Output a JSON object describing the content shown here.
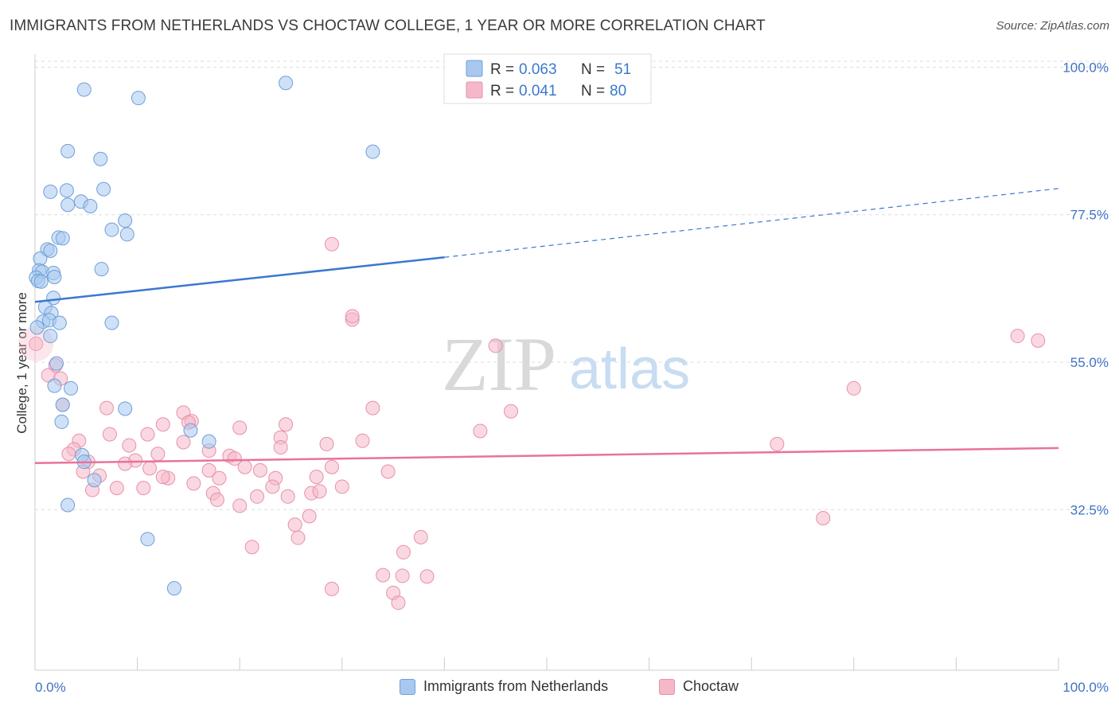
{
  "title": "IMMIGRANTS FROM NETHERLANDS VS CHOCTAW COLLEGE, 1 YEAR OR MORE CORRELATION CHART",
  "source": "Source: ZipAtlas.com",
  "watermark": {
    "zip": "ZIP",
    "atlas": "atlas"
  },
  "colors": {
    "blue_fill": "#a8c8f0",
    "blue_stroke": "#6f9fd8",
    "blue_line": "#3a78d0",
    "pink_fill": "#f5b8c8",
    "pink_stroke": "#e890aa",
    "pink_line": "#e8739a",
    "tick_label": "#3f72c4",
    "grid": "#dddddd"
  },
  "legend_top": {
    "rows": [
      {
        "r_label": "R = ",
        "r_value": "0.063",
        "n_label": "N = ",
        "n_value": "51",
        "color": "blue"
      },
      {
        "r_label": "R = ",
        "r_value": "0.041",
        "n_label": "N = ",
        "n_value": "80",
        "color": "pink"
      }
    ]
  },
  "legend_bottom": [
    {
      "label": "Immigrants from Netherlands",
      "color": "blue"
    },
    {
      "label": "Choctaw",
      "color": "pink"
    }
  ],
  "chart_data": {
    "type": "scatter",
    "title": "IMMIGRANTS FROM NETHERLANDS VS CHOCTAW COLLEGE, 1 YEAR OR MORE CORRELATION CHART",
    "xlabel": "",
    "ylabel": "College, 1 year or more",
    "xlim": [
      0,
      100
    ],
    "ylim": [
      8,
      102
    ],
    "x_tick_labels": [
      {
        "value": 0,
        "label": "0.0%"
      },
      {
        "value": 100,
        "label": "100.0%"
      }
    ],
    "y_tick_labels": [
      {
        "value": 100,
        "label": "100.0%"
      },
      {
        "value": 77.5,
        "label": "77.5%"
      },
      {
        "value": 55,
        "label": "55.0%"
      },
      {
        "value": 32.5,
        "label": "32.5%"
      }
    ],
    "grid": true,
    "legend_position": "top-center",
    "series": [
      {
        "name": "Immigrants from Netherlands",
        "color": "blue",
        "r": 0.063,
        "n": 51,
        "trend": {
          "x": [
            0,
            40
          ],
          "y": [
            64.2,
            71.0
          ],
          "dashed_x": [
            40,
            100
          ],
          "dashed_y": [
            71.0,
            81.5
          ]
        },
        "points": [
          [
            4.8,
            96.6
          ],
          [
            10.1,
            95.3
          ],
          [
            24.5,
            97.6
          ],
          [
            3.2,
            87.2
          ],
          [
            6.4,
            86.0
          ],
          [
            33.0,
            87.1
          ],
          [
            1.5,
            81.0
          ],
          [
            3.1,
            81.2
          ],
          [
            4.5,
            79.5
          ],
          [
            6.7,
            81.4
          ],
          [
            3.2,
            79.0
          ],
          [
            5.4,
            78.8
          ],
          [
            8.8,
            76.6
          ],
          [
            7.5,
            75.2
          ],
          [
            9.0,
            74.5
          ],
          [
            2.3,
            74.0
          ],
          [
            2.7,
            73.9
          ],
          [
            1.2,
            72.2
          ],
          [
            1.5,
            72.0
          ],
          [
            0.5,
            70.8
          ],
          [
            0.4,
            69.0
          ],
          [
            0.7,
            68.8
          ],
          [
            1.8,
            68.6
          ],
          [
            6.5,
            69.2
          ],
          [
            0.1,
            67.9
          ],
          [
            0.3,
            67.4
          ],
          [
            0.6,
            67.3
          ],
          [
            1.9,
            68.0
          ],
          [
            1.8,
            64.8
          ],
          [
            1.0,
            63.4
          ],
          [
            1.6,
            62.5
          ],
          [
            0.8,
            61.2
          ],
          [
            1.4,
            61.4
          ],
          [
            2.4,
            61.0
          ],
          [
            7.5,
            61.0
          ],
          [
            1.5,
            59.0
          ],
          [
            2.1,
            54.8
          ],
          [
            1.9,
            51.4
          ],
          [
            3.5,
            51.0
          ],
          [
            2.7,
            48.5
          ],
          [
            8.8,
            47.9
          ],
          [
            2.6,
            45.9
          ],
          [
            15.2,
            44.6
          ],
          [
            17.0,
            42.9
          ],
          [
            4.6,
            40.8
          ],
          [
            4.8,
            39.8
          ],
          [
            5.8,
            37.0
          ],
          [
            3.2,
            33.2
          ],
          [
            11.0,
            28.0
          ],
          [
            13.6,
            20.5
          ],
          [
            0.2,
            60.3
          ]
        ]
      },
      {
        "name": "Choctaw",
        "color": "pink",
        "r": 0.041,
        "n": 80,
        "trend": {
          "x": [
            0,
            100
          ],
          "y": [
            39.6,
            41.9
          ]
        },
        "points": [
          [
            0.1,
            57.8
          ],
          [
            29.0,
            73.0
          ],
          [
            31.0,
            61.5
          ],
          [
            45.0,
            57.5
          ],
          [
            96.0,
            59.0
          ],
          [
            98.0,
            58.3
          ],
          [
            80.0,
            51.0
          ],
          [
            2.0,
            54.5
          ],
          [
            1.3,
            53.0
          ],
          [
            2.5,
            52.5
          ],
          [
            2.7,
            48.5
          ],
          [
            7.0,
            48.0
          ],
          [
            33.0,
            48.0
          ],
          [
            46.5,
            47.5
          ],
          [
            14.5,
            47.3
          ],
          [
            15.3,
            46.0
          ],
          [
            12.5,
            45.5
          ],
          [
            24.5,
            45.5
          ],
          [
            20.0,
            45.0
          ],
          [
            7.3,
            44.0
          ],
          [
            11.0,
            44.0
          ],
          [
            43.5,
            44.5
          ],
          [
            24.0,
            43.5
          ],
          [
            32.0,
            43.0
          ],
          [
            4.3,
            43.0
          ],
          [
            14.5,
            42.8
          ],
          [
            28.5,
            42.5
          ],
          [
            72.5,
            42.5
          ],
          [
            9.2,
            42.3
          ],
          [
            24.0,
            42.0
          ],
          [
            3.8,
            41.7
          ],
          [
            17.0,
            41.5
          ],
          [
            3.3,
            41.0
          ],
          [
            12.0,
            41.0
          ],
          [
            19.0,
            40.7
          ],
          [
            9.8,
            40.0
          ],
          [
            19.5,
            40.3
          ],
          [
            8.8,
            39.5
          ],
          [
            5.2,
            39.8
          ],
          [
            4.7,
            38.3
          ],
          [
            11.2,
            38.8
          ],
          [
            20.5,
            39.0
          ],
          [
            17.0,
            38.5
          ],
          [
            29.0,
            39.0
          ],
          [
            34.5,
            38.3
          ],
          [
            22.0,
            38.5
          ],
          [
            6.3,
            37.7
          ],
          [
            13.0,
            37.3
          ],
          [
            12.5,
            37.5
          ],
          [
            18.0,
            37.3
          ],
          [
            23.5,
            37.3
          ],
          [
            27.5,
            37.5
          ],
          [
            15.5,
            36.5
          ],
          [
            23.2,
            36.0
          ],
          [
            30.0,
            36.0
          ],
          [
            8.0,
            35.8
          ],
          [
            5.6,
            35.5
          ],
          [
            10.6,
            35.8
          ],
          [
            17.4,
            35.0
          ],
          [
            27.0,
            35.0
          ],
          [
            21.7,
            34.5
          ],
          [
            17.8,
            34.0
          ],
          [
            20.0,
            33.1
          ],
          [
            24.7,
            34.5
          ],
          [
            26.8,
            31.5
          ],
          [
            25.4,
            30.2
          ],
          [
            77.0,
            31.2
          ],
          [
            25.7,
            28.2
          ],
          [
            37.7,
            28.3
          ],
          [
            21.2,
            26.8
          ],
          [
            36.0,
            26.0
          ],
          [
            34.0,
            22.5
          ],
          [
            35.9,
            22.4
          ],
          [
            38.3,
            22.3
          ],
          [
            29.0,
            20.4
          ],
          [
            35.0,
            19.8
          ],
          [
            35.5,
            18.3
          ],
          [
            31.0,
            62.0
          ],
          [
            15.0,
            45.8
          ],
          [
            27.8,
            35.3
          ]
        ]
      }
    ]
  }
}
